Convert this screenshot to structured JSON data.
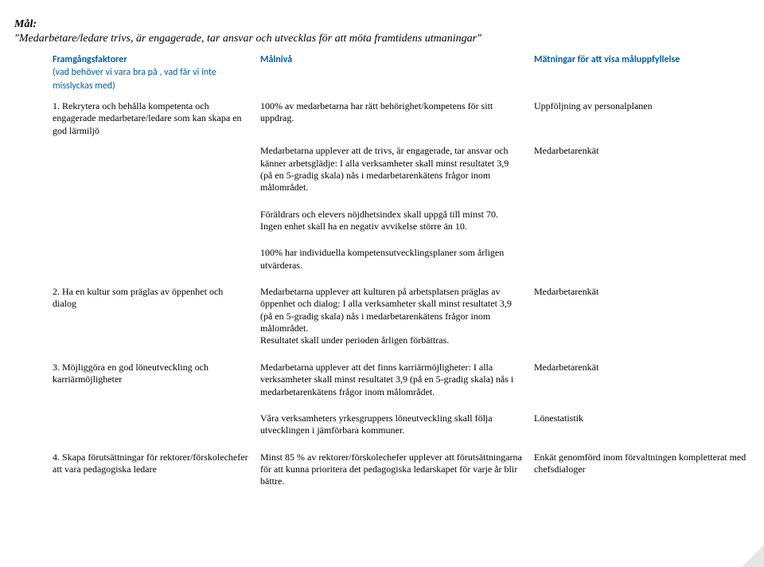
{
  "goal": {
    "label": "Mål:",
    "text": "\"Medarbetare/ledare trivs, är engagerade, tar ansvar och utvecklas för att möta framtidens utmaningar\""
  },
  "headers": {
    "col1_line1": "Framgångsfaktorer",
    "col1_line2": "(vad behöver vi vara bra på , vad får vi inte misslyckas med)",
    "col2": "Målnivå",
    "col3": "Mätningar för att visa måluppfyllelse"
  },
  "rows": [
    {
      "factor": "1. Rekrytera och behålla kompetenta och engagerade medarbetare/ledare som kan skapa en god lärmiljö",
      "levels": [
        "100% av medarbetarna har rätt behörighet/kompetens för sitt uppdrag.",
        "Medarbetarna upplever att de trivs, är engagerade, tar ansvar och känner arbetsglädje: I alla verksamheter skall minst resultatet 3,9 (på en 5-gradig skala) nås i medarbetarenkätens frågor inom målområdet.",
        "Föräldrars och elevers nöjdhetsindex skall uppgå till minst 70.\nIngen enhet skall ha en negativ avvikelse större än 10.",
        "100% har individuella kompetensutvecklingsplaner som årligen utvärderas."
      ],
      "measures": [
        "Uppföljning av personalplanen",
        "Medarbetarenkät",
        "",
        ""
      ]
    },
    {
      "factor": "2. Ha en kultur som präglas av öppenhet och dialog",
      "levels": [
        "Medarbetarna upplever att kulturen på arbetsplatsen präglas av öppenhet och dialog: I alla verksamheter skall minst resultatet 3,9 (på en 5-gradig skala) nås i medarbetarenkätens frågor inom målområdet.\nResultatet skall under perioden årligen förbättras."
      ],
      "measures": [
        "Medarbetarenkät"
      ]
    },
    {
      "factor": "3. Möjliggöra en god löneutveckling och karriärmöjligheter",
      "levels": [
        "Medarbetarna upplever att det finns karriärmöjligheter: I alla verksamheter skall minst resultatet 3,9 (på en 5-gradig skala) nås i medarbetarenkätens frågor inom målområdet.",
        "Våra verksamheters yrkesgruppers löneutveckling skall följa utvecklingen i jämförbara kommuner."
      ],
      "measures": [
        "Medarbetarenkät",
        "Lönestatistik"
      ]
    },
    {
      "factor": "4. Skapa förutsättningar för rektorer/förskolechefer att vara pedagogiska ledare",
      "levels": [
        "Minst 85 % av rektorer/förskolechefer upplever att förutsättningarna för att kunna prioritera det pedagogiska ledarskapet för varje år blir bättre."
      ],
      "measures": [
        "Enkät genomförd inom förvaltningen kompletterat med chefsdialoger"
      ]
    }
  ]
}
